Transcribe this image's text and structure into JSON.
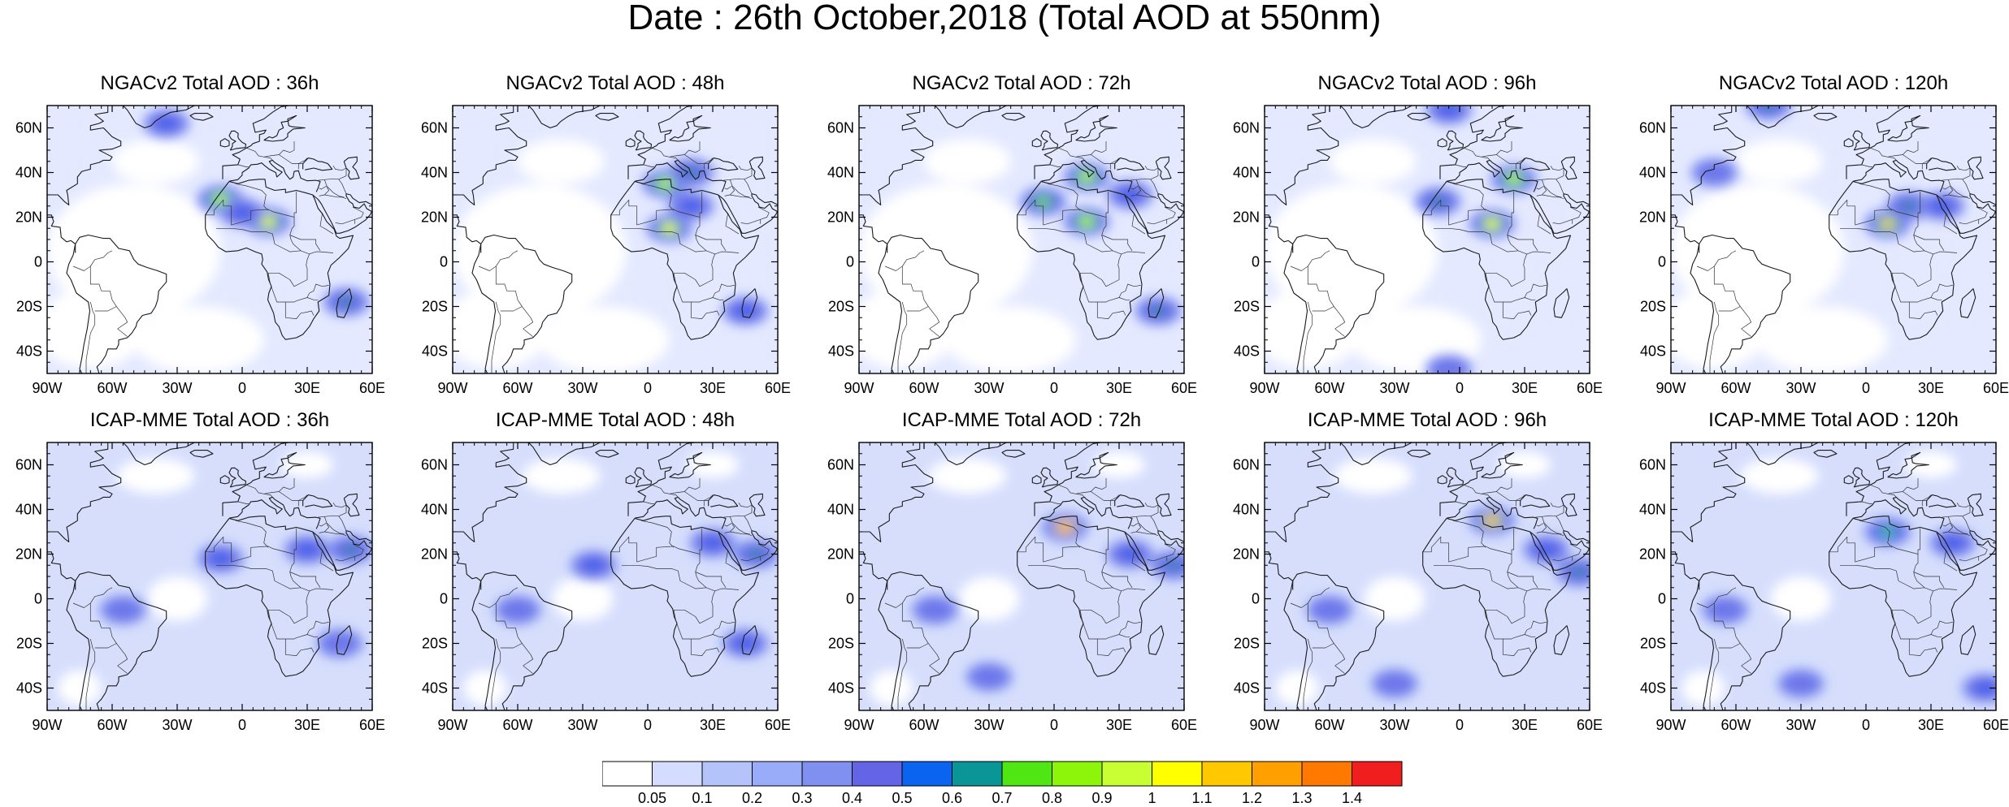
{
  "title": "Date : 26th October,2018 (Total AOD at 550nm)",
  "lat_ticks": [
    "60N",
    "40N",
    "20N",
    "0",
    "20S",
    "40S"
  ],
  "lon_ticks": [
    "90W",
    "60W",
    "30W",
    "0",
    "30E",
    "60E"
  ],
  "map_extent": {
    "lon": [
      -90,
      60
    ],
    "lat": [
      -50,
      70
    ]
  },
  "panels": [
    {
      "title": "NGACv2 Total AOD : 36h",
      "model": "NGACv2",
      "lead": "36h",
      "hotspots": [
        [
          12,
          18,
          1.0
        ],
        [
          -10,
          28,
          0.9
        ],
        [
          48,
          -18,
          0.6
        ],
        [
          -35,
          62,
          0.5
        ],
        [
          0,
          22,
          0.5
        ]
      ]
    },
    {
      "title": "NGACv2 Total AOD : 48h",
      "model": "NGACv2",
      "lead": "48h",
      "hotspots": [
        [
          8,
          35,
          0.9
        ],
        [
          10,
          15,
          1.0
        ],
        [
          20,
          25,
          0.5
        ],
        [
          45,
          -22,
          0.5
        ],
        [
          20,
          40,
          0.6
        ]
      ]
    },
    {
      "title": "NGACv2 Total AOD : 72h",
      "model": "NGACv2",
      "lead": "72h",
      "hotspots": [
        [
          15,
          38,
          0.9
        ],
        [
          -5,
          27,
          0.8
        ],
        [
          15,
          18,
          0.9
        ],
        [
          48,
          -22,
          0.6
        ],
        [
          35,
          30,
          0.5
        ]
      ]
    },
    {
      "title": "NGACv2 Total AOD : 96h",
      "model": "NGACv2",
      "lead": "96h",
      "hotspots": [
        [
          25,
          37,
          0.9
        ],
        [
          15,
          17,
          1.0
        ],
        [
          -10,
          27,
          0.6
        ],
        [
          -5,
          68,
          0.5
        ],
        [
          -5,
          -48,
          0.4
        ]
      ]
    },
    {
      "title": "NGACv2 Total AOD : 120h",
      "model": "NGACv2",
      "lead": "120h",
      "hotspots": [
        [
          10,
          17,
          1.1
        ],
        [
          20,
          25,
          0.6
        ],
        [
          -45,
          70,
          0.6
        ],
        [
          35,
          25,
          0.5
        ],
        [
          -70,
          40,
          0.4
        ]
      ]
    },
    {
      "title": "ICAP-MME Total AOD : 36h",
      "model": "ICAP-MME",
      "lead": "36h",
      "hotspots": [
        [
          -10,
          18,
          0.5
        ],
        [
          30,
          22,
          0.5
        ],
        [
          50,
          22,
          0.6
        ],
        [
          -55,
          -5,
          0.45
        ],
        [
          45,
          -20,
          0.45
        ]
      ]
    },
    {
      "title": "ICAP-MME Total AOD : 48h",
      "model": "ICAP-MME",
      "lead": "48h",
      "hotspots": [
        [
          -25,
          15,
          0.5
        ],
        [
          50,
          20,
          0.6
        ],
        [
          30,
          25,
          0.5
        ],
        [
          45,
          -20,
          0.5
        ],
        [
          -60,
          -5,
          0.45
        ]
      ]
    },
    {
      "title": "ICAP-MME Total AOD : 72h",
      "model": "ICAP-MME",
      "lead": "72h",
      "hotspots": [
        [
          5,
          32,
          1.3
        ],
        [
          55,
          15,
          0.6
        ],
        [
          35,
          20,
          0.5
        ],
        [
          -55,
          -5,
          0.45
        ],
        [
          -30,
          -35,
          0.4
        ]
      ]
    },
    {
      "title": "ICAP-MME Total AOD : 96h",
      "model": "ICAP-MME",
      "lead": "96h",
      "hotspots": [
        [
          15,
          35,
          1.2
        ],
        [
          55,
          12,
          0.6
        ],
        [
          40,
          22,
          0.5
        ],
        [
          -30,
          -38,
          0.45
        ],
        [
          -60,
          -5,
          0.4
        ]
      ]
    },
    {
      "title": "ICAP-MME Total AOD : 120h",
      "model": "ICAP-MME",
      "lead": "120h",
      "hotspots": [
        [
          10,
          30,
          0.7
        ],
        [
          40,
          25,
          0.5
        ],
        [
          55,
          -40,
          0.5
        ],
        [
          -30,
          -38,
          0.45
        ],
        [
          -65,
          -5,
          0.4
        ]
      ]
    }
  ],
  "colorbar": {
    "labels": [
      "0.05",
      "0.1",
      "0.2",
      "0.3",
      "0.4",
      "0.5",
      "0.6",
      "0.7",
      "0.8",
      "0.9",
      "1",
      "1.1",
      "1.2",
      "1.3",
      "1.4"
    ],
    "colors": [
      "#ffffff",
      "#d4dcff",
      "#b4c3fa",
      "#98acfa",
      "#7f90f0",
      "#6464e6",
      "#0a64f0",
      "#0a9696",
      "#50e614",
      "#8cf50a",
      "#c8ff32",
      "#ffff00",
      "#ffc800",
      "#ffa000",
      "#ff7800",
      "#f01e1e"
    ]
  }
}
